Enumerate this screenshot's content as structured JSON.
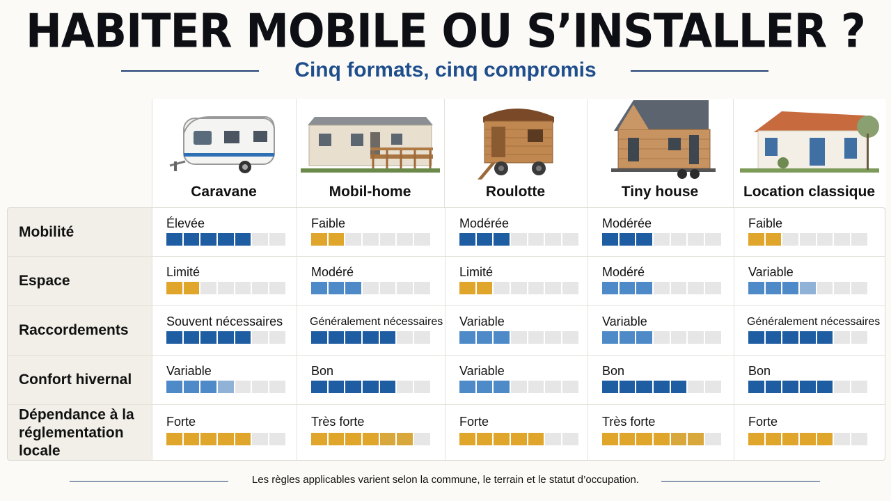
{
  "header": {
    "title": "HABITER MOBILE OU S’INSTALLER ?",
    "subtitle": "Cinq formats, cinq compromis"
  },
  "columns": [
    {
      "name": "Caravane",
      "icon": "caravan-illustration"
    },
    {
      "name": "Mobil-home",
      "icon": "mobile-home-illustration"
    },
    {
      "name": "Roulotte",
      "icon": "roulotte-illustration"
    },
    {
      "name": "Tiny house",
      "icon": "tiny-house-illustration"
    },
    {
      "name": "Location classique",
      "icon": "house-illustration"
    }
  ],
  "colors": {
    "blue": "#1f5da3",
    "blue_light": "#4e8ac8",
    "blue_pale": "#8fb2d6",
    "gold": "#e0a52b",
    "gold_mid": "#d8a83c",
    "empty": "#e6e6e6"
  },
  "rows": [
    {
      "label": "Mobilité",
      "cells": [
        {
          "value": "Élevée",
          "level": 5,
          "color": "blue"
        },
        {
          "value": "Faible",
          "level": 2,
          "color": "gold"
        },
        {
          "value": "Modérée",
          "level": 3,
          "color": "blue"
        },
        {
          "value": "Modérée",
          "level": 3,
          "color": "blue"
        },
        {
          "value": "Faible",
          "level": 2,
          "color": "gold"
        }
      ]
    },
    {
      "label": "Espace",
      "cells": [
        {
          "value": "Limité",
          "level": 2,
          "color": "gold"
        },
        {
          "value": "Modéré",
          "level": 3,
          "color": "blue_light"
        },
        {
          "value": "Limité",
          "level": 2,
          "color": "gold"
        },
        {
          "value": "Modéré",
          "level": 3,
          "color": "blue_light"
        },
        {
          "value": "Variable",
          "level": 4,
          "color": "blue_light",
          "fade": true
        }
      ]
    },
    {
      "label": "Raccordements",
      "cells": [
        {
          "value": "Souvent nécessaires",
          "level": 5,
          "color": "blue"
        },
        {
          "value": "Généralement nécessaires",
          "level": 5,
          "color": "blue",
          "small": true
        },
        {
          "value": "Variable",
          "level": 3,
          "color": "blue_light"
        },
        {
          "value": "Variable",
          "level": 3,
          "color": "blue_light"
        },
        {
          "value": "Généralement nécessaires",
          "level": 5,
          "color": "blue",
          "small": true
        }
      ]
    },
    {
      "label": "Confort hivernal",
      "cells": [
        {
          "value": "Variable",
          "level": 4,
          "color": "blue_light",
          "fade": true
        },
        {
          "value": "Bon",
          "level": 5,
          "color": "blue"
        },
        {
          "value": "Variable",
          "level": 3,
          "color": "blue_light"
        },
        {
          "value": "Bon",
          "level": 5,
          "color": "blue"
        },
        {
          "value": "Bon",
          "level": 5,
          "color": "blue"
        }
      ]
    },
    {
      "label": "Dépendance à la réglementation locale",
      "cells": [
        {
          "value": "Forte",
          "level": 5,
          "color": "gold"
        },
        {
          "value": "Très forte",
          "level": 6,
          "color": "gold"
        },
        {
          "value": "Forte",
          "level": 5,
          "color": "gold"
        },
        {
          "value": "Très forte",
          "level": 6,
          "color": "gold"
        },
        {
          "value": "Forte",
          "level": 5,
          "color": "gold"
        }
      ]
    }
  ],
  "footer": {
    "note": "Les règles applicables varient selon la commune, le terrain et le statut d’occupation."
  }
}
